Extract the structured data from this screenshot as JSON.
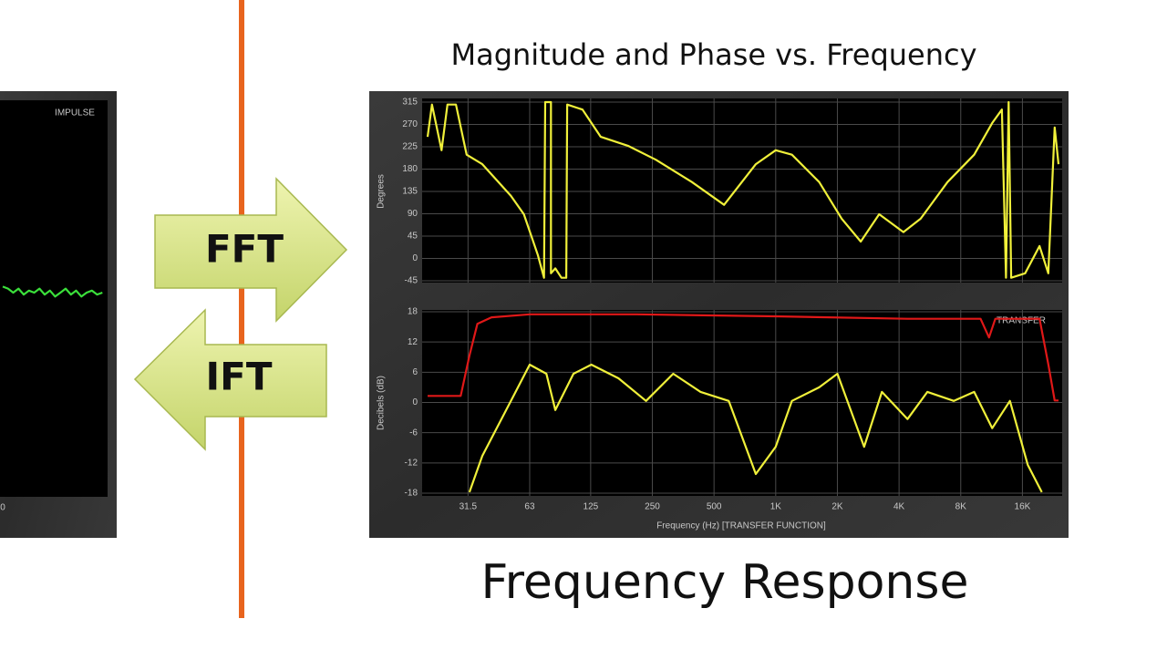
{
  "title": "Magnitude and Phase vs. Frequency",
  "caption": "Frequency Response",
  "arrows": {
    "forward": "FFT",
    "inverse": "IFT"
  },
  "chart_data": [
    {
      "type": "line",
      "annotation": "IMPULSE",
      "xlim": [
        0,
        100
      ],
      "xticks": [
        0
      ],
      "ylim": [
        -1,
        1
      ],
      "series": [
        {
          "color": "#3be03b",
          "x": [
            0,
            5,
            10,
            15,
            20,
            25,
            30,
            35,
            40,
            45,
            50,
            55,
            60,
            65,
            70,
            75,
            80,
            85,
            90,
            95
          ],
          "values": [
            0.06,
            0.05,
            0.03,
            0.05,
            0.02,
            0.04,
            0.03,
            0.05,
            0.02,
            0.04,
            0.01,
            0.03,
            0.05,
            0.02,
            0.04,
            0.01,
            0.03,
            0.04,
            0.02,
            0.03
          ]
        }
      ]
    },
    {
      "type": "line",
      "y_label": "Degrees",
      "log_x": true,
      "grid": true,
      "xlim": [
        19,
        24500
      ],
      "ylim": [
        -45,
        315
      ],
      "yticks": [
        -45,
        0,
        45,
        90,
        135,
        180,
        225,
        270,
        315
      ],
      "series": [
        {
          "color": "#f0f03a",
          "x": [
            20,
            21,
            23.4,
            25,
            27.5,
            31,
            37,
            51,
            59,
            69,
            74,
            75,
            80,
            80,
            84,
            90,
            95,
            96,
            114,
            140,
            190,
            260,
            390,
            560,
            800,
            1000,
            1200,
            1630,
            2100,
            2600,
            3200,
            4200,
            5100,
            6900,
            9300,
            11400,
            12700,
            13300,
            13700,
            14100,
            16500,
            19400,
            21400,
            23000,
            24000
          ],
          "values": [
            245,
            310,
            218,
            310,
            310,
            209,
            190,
            126,
            89,
            7,
            -39,
            315,
            315,
            -30,
            -20,
            -39,
            -39,
            310,
            300,
            245,
            227,
            199,
            154,
            108,
            190,
            218,
            209,
            154,
            80,
            34,
            89,
            53,
            80,
            154,
            209,
            273,
            300,
            -39,
            315,
            -39,
            -30,
            25,
            -30,
            264,
            190
          ]
        }
      ]
    },
    {
      "type": "line",
      "y_label": "Decibels (dB)",
      "x_label": "Frequency (Hz) [TRANSFER FUNCTION]",
      "annotation": "TRANSFER",
      "log_x": true,
      "grid": true,
      "xlim": [
        19,
        24500
      ],
      "xticks": [
        31.5,
        63,
        125,
        250,
        500,
        {
          "value": 1000,
          "label": "1K"
        },
        {
          "value": 2000,
          "label": "2K"
        },
        {
          "value": 4000,
          "label": "4K"
        },
        {
          "value": 8000,
          "label": "8K"
        },
        {
          "value": 16000,
          "label": "16K"
        }
      ],
      "ylim": [
        -18,
        18
      ],
      "yticks": [
        -18,
        -12,
        -6,
        0,
        6,
        12,
        18
      ],
      "series": [
        {
          "color": "#e01818",
          "x": [
            20,
            29,
            32,
            35,
            41,
            63,
            210,
            1000,
            4400,
            10000,
            11000,
            11800,
            19400,
            21400,
            23000,
            24000
          ],
          "values": [
            1.3,
            1.3,
            9.3,
            15.6,
            16.9,
            17.5,
            17.5,
            17.1,
            16.6,
            16.6,
            12.9,
            16.6,
            16.6,
            7.6,
            0.4,
            0.4
          ]
        },
        {
          "color": "#f0f03a",
          "x": [
            32,
            37,
            51,
            63,
            76,
            84,
            103,
            126,
            171,
            233,
            316,
            430,
            590,
            800,
            1000,
            1200,
            1630,
            2000,
            2700,
            3300,
            4400,
            5500,
            7400,
            9300,
            11400,
            13900,
            17000,
            19900
          ],
          "values": [
            -17.8,
            -10.6,
            0.3,
            7.5,
            5.7,
            -1.5,
            5.7,
            7.5,
            4.8,
            0.3,
            5.7,
            2.1,
            0.3,
            -14.2,
            -8.8,
            0.3,
            3,
            5.7,
            -8.8,
            2.1,
            -3.3,
            2.1,
            0.3,
            2.1,
            -5.1,
            0.3,
            -12.4,
            -17.8
          ]
        }
      ]
    }
  ]
}
